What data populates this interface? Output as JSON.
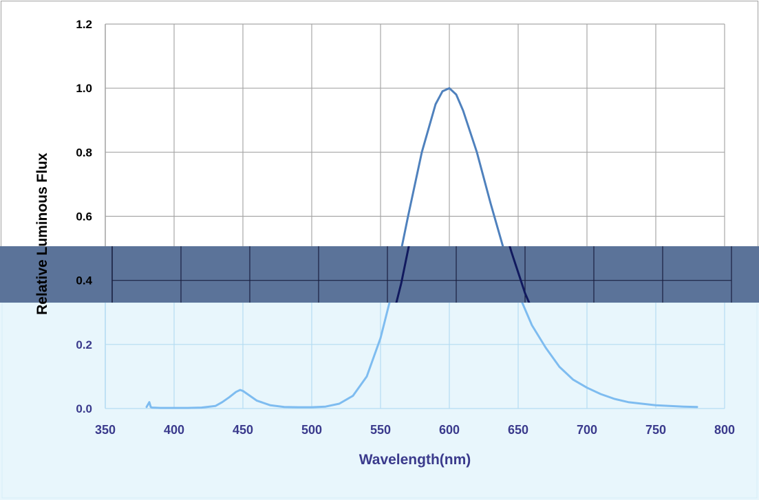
{
  "chart_data": {
    "type": "line",
    "title": "",
    "xlabel": "Wavelength(nm)",
    "ylabel": "Relative Luminous Flux",
    "xlim": [
      350,
      800
    ],
    "ylim": [
      0.0,
      1.2
    ],
    "x_ticks": [
      "350",
      "400",
      "450",
      "500",
      "550",
      "600",
      "650",
      "700",
      "750",
      "800"
    ],
    "y_ticks": [
      "0.0",
      "0.2",
      "0.4",
      "0.6",
      "0.8",
      "1.0",
      "1.2"
    ],
    "grid": true,
    "legend": "none",
    "series": [
      {
        "color": "#4f81bd",
        "x": [
          380,
          382,
          383,
          384,
          390,
          400,
          410,
          420,
          430,
          435,
          440,
          445,
          448,
          450,
          455,
          460,
          470,
          480,
          490,
          500,
          510,
          520,
          530,
          540,
          550,
          560,
          570,
          580,
          590,
          595,
          600,
          605,
          610,
          620,
          630,
          640,
          650,
          660,
          670,
          680,
          690,
          700,
          710,
          720,
          730,
          740,
          750,
          760,
          770,
          780
        ],
        "values": [
          0.005,
          0.02,
          0.005,
          0.003,
          0.002,
          0.002,
          0.002,
          0.003,
          0.008,
          0.02,
          0.035,
          0.052,
          0.058,
          0.055,
          0.04,
          0.025,
          0.01,
          0.005,
          0.004,
          0.004,
          0.006,
          0.015,
          0.04,
          0.1,
          0.22,
          0.39,
          0.6,
          0.8,
          0.95,
          0.99,
          1.0,
          0.98,
          0.93,
          0.8,
          0.64,
          0.49,
          0.36,
          0.26,
          0.19,
          0.13,
          0.09,
          0.065,
          0.045,
          0.03,
          0.02,
          0.015,
          0.01,
          0.008,
          0.006,
          0.005
        ]
      }
    ]
  },
  "colors": {
    "band_fill": "#5b7399",
    "lower_background": "#e8f6fc",
    "grid": "#a6a6a6",
    "tick_label": "#3a3a8c",
    "upper_tick_label": "#000000",
    "frame": "#a0a0a0"
  }
}
